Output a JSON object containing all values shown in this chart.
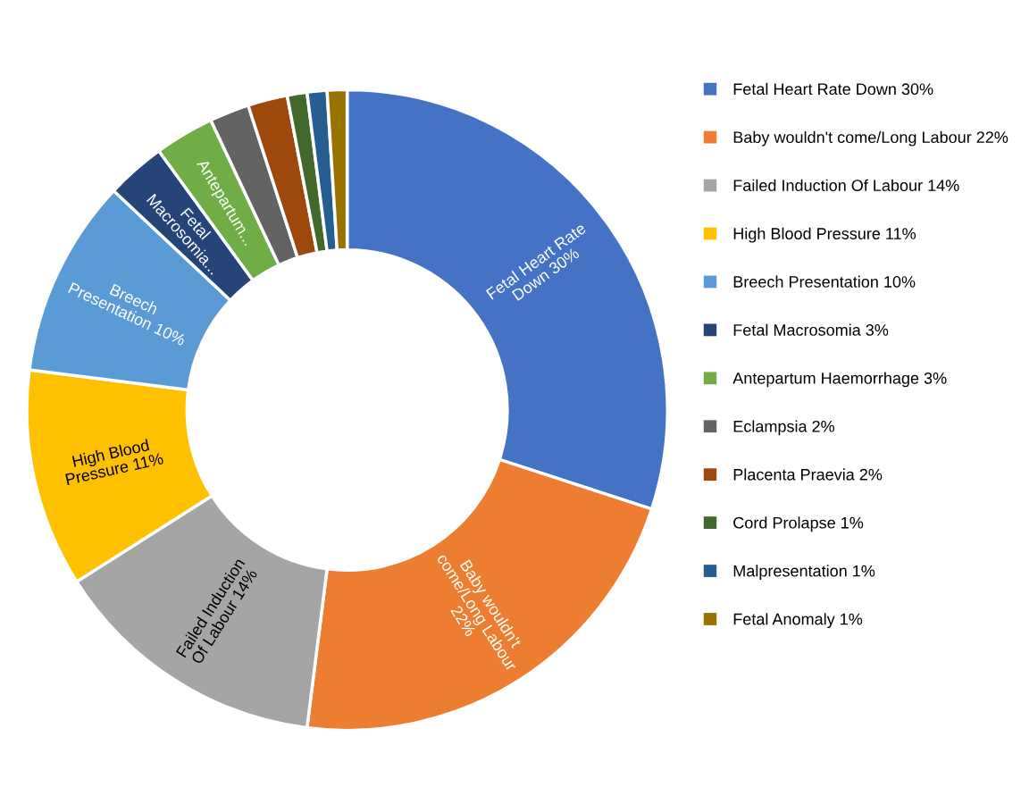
{
  "chart_data": {
    "type": "donut",
    "categories": [
      "Fetal Heart Rate Down 30%",
      "Baby wouldn't come/Long Labour 22%",
      "Failed Induction Of Labour 14%",
      "High Blood Pressure 11%",
      "Breech Presentation 10%",
      "Fetal Macrosomia 3%",
      "Antepartum Haemorrhage 3%",
      "Eclampsia 2%",
      "Placenta Praevia 2%",
      "Cord Prolapse 1%",
      "Malpresentation 1%",
      "Fetal Anomaly 1%"
    ],
    "values": [
      30,
      22,
      14,
      11,
      10,
      3,
      3,
      2,
      2,
      1,
      1,
      1
    ],
    "colors": [
      "#4472c4",
      "#ed7d31",
      "#a5a5a5",
      "#ffc000",
      "#5b9bd5",
      "#264478",
      "#70ad47",
      "#636363",
      "#9e480e",
      "#43682b",
      "#255e91",
      "#997300"
    ],
    "value_labels": [
      "Fetal Heart Rate Down 30%",
      "Baby wouldn't come/Long Labour 22%",
      "Failed Induction Of Labour 14%",
      "High Blood Pressure 11%",
      "Breech Presentation 10%",
      "Fetal Macrosomia...",
      "Antepartum...",
      null,
      null,
      null,
      null,
      null
    ],
    "legend": "right"
  }
}
